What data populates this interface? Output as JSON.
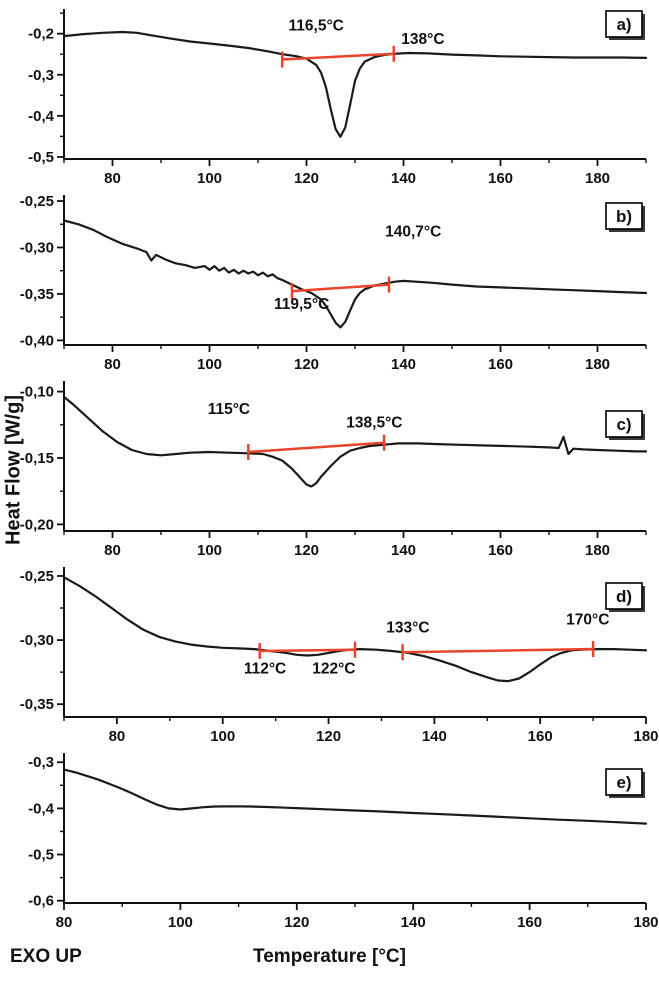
{
  "figure": {
    "y_axis_label": "Heat Flow [W/g]",
    "x_axis_label": "Temperature [°C]",
    "exo_label": "EXO UP",
    "curve_color": "#1a1a1a",
    "marker_color": "#e8432c",
    "background": "#ffffff"
  },
  "chart_data": [
    {
      "type": "line",
      "panel_label": "a)",
      "panel_label_offset": 2,
      "xlim": [
        70,
        190
      ],
      "ylim": [
        -0.505,
        -0.14
      ],
      "xticks": [
        80,
        100,
        120,
        140,
        160,
        180
      ],
      "x_minor_step": 10,
      "yticks": [
        -0.2,
        -0.3,
        -0.4,
        -0.5
      ],
      "ytick_labels": [
        "-0,2",
        "-0,3",
        "-0,4",
        "-0,5"
      ],
      "y_minor_step": 0.05,
      "curve": [
        [
          70,
          -0.206
        ],
        [
          74,
          -0.201
        ],
        [
          78,
          -0.198
        ],
        [
          82,
          -0.196
        ],
        [
          85,
          -0.198
        ],
        [
          88,
          -0.204
        ],
        [
          92,
          -0.212
        ],
        [
          96,
          -0.219
        ],
        [
          100,
          -0.224
        ],
        [
          104,
          -0.229
        ],
        [
          108,
          -0.235
        ],
        [
          112,
          -0.243
        ],
        [
          115,
          -0.25
        ],
        [
          118,
          -0.255
        ],
        [
          120,
          -0.261
        ],
        [
          122,
          -0.276
        ],
        [
          123,
          -0.295
        ],
        [
          124,
          -0.33
        ],
        [
          125,
          -0.384
        ],
        [
          126,
          -0.432
        ],
        [
          127,
          -0.451
        ],
        [
          128,
          -0.428
        ],
        [
          129,
          -0.373
        ],
        [
          130,
          -0.315
        ],
        [
          131,
          -0.285
        ],
        [
          132,
          -0.268
        ],
        [
          134,
          -0.257
        ],
        [
          136,
          -0.252
        ],
        [
          138,
          -0.249
        ],
        [
          141,
          -0.247
        ],
        [
          145,
          -0.248
        ],
        [
          150,
          -0.251
        ],
        [
          155,
          -0.253
        ],
        [
          160,
          -0.255
        ],
        [
          165,
          -0.256
        ],
        [
          170,
          -0.257
        ],
        [
          175,
          -0.258
        ],
        [
          180,
          -0.258
        ],
        [
          185,
          -0.258
        ],
        [
          190,
          -0.259
        ]
      ],
      "baselines": [
        {
          "x1": 115,
          "y1": -0.263,
          "x2": 138,
          "y2": -0.249
        }
      ],
      "annotations": [
        {
          "text": "116,5°C",
          "x": 122,
          "y": -0.192
        },
        {
          "text": "138°C",
          "x": 144,
          "y": -0.225
        }
      ]
    },
    {
      "type": "line",
      "panel_label": "b)",
      "panel_label_offset": 8,
      "xlim": [
        70,
        190
      ],
      "ylim": [
        -0.405,
        -0.2435
      ],
      "xticks": [
        80,
        100,
        120,
        140,
        160,
        180
      ],
      "x_minor_step": 10,
      "yticks": [
        -0.25,
        -0.3,
        -0.35,
        -0.4
      ],
      "ytick_labels": [
        "-0,25",
        "-0,30",
        "-0,35",
        "-0,40"
      ],
      "y_minor_step": 0.025,
      "curve": [
        [
          70,
          -0.271
        ],
        [
          73,
          -0.275
        ],
        [
          76,
          -0.281
        ],
        [
          79,
          -0.289
        ],
        [
          82,
          -0.296
        ],
        [
          85,
          -0.301
        ],
        [
          87,
          -0.305
        ],
        [
          88,
          -0.314
        ],
        [
          89,
          -0.308
        ],
        [
          91,
          -0.313
        ],
        [
          93,
          -0.317
        ],
        [
          95,
          -0.319
        ],
        [
          97,
          -0.322
        ],
        [
          99,
          -0.32
        ],
        [
          100,
          -0.324
        ],
        [
          101,
          -0.32
        ],
        [
          102,
          -0.325
        ],
        [
          103,
          -0.322
        ],
        [
          104,
          -0.327
        ],
        [
          105,
          -0.324
        ],
        [
          106,
          -0.328
        ],
        [
          107,
          -0.325
        ],
        [
          108,
          -0.328
        ],
        [
          109,
          -0.326
        ],
        [
          110,
          -0.33
        ],
        [
          111,
          -0.327
        ],
        [
          112,
          -0.331
        ],
        [
          113,
          -0.329
        ],
        [
          114,
          -0.333
        ],
        [
          115,
          -0.335
        ],
        [
          117,
          -0.34
        ],
        [
          119,
          -0.345
        ],
        [
          121,
          -0.349
        ],
        [
          123,
          -0.356
        ],
        [
          124,
          -0.363
        ],
        [
          125,
          -0.372
        ],
        [
          126,
          -0.381
        ],
        [
          127,
          -0.386
        ],
        [
          128,
          -0.38
        ],
        [
          129,
          -0.368
        ],
        [
          130,
          -0.356
        ],
        [
          131,
          -0.349
        ],
        [
          132,
          -0.345
        ],
        [
          134,
          -0.341
        ],
        [
          136,
          -0.339
        ],
        [
          138,
          -0.337
        ],
        [
          140,
          -0.336
        ],
        [
          143,
          -0.337
        ],
        [
          146,
          -0.338
        ],
        [
          150,
          -0.34
        ],
        [
          155,
          -0.342
        ],
        [
          160,
          -0.343
        ],
        [
          165,
          -0.344
        ],
        [
          170,
          -0.345
        ],
        [
          175,
          -0.346
        ],
        [
          180,
          -0.347
        ],
        [
          185,
          -0.348
        ],
        [
          190,
          -0.349
        ]
      ],
      "baselines": [
        {
          "x1": 117,
          "y1": -0.347,
          "x2": 137,
          "y2": -0.34
        }
      ],
      "annotations": [
        {
          "text": "140,7°C",
          "x": 142,
          "y": -0.288
        },
        {
          "text": "119,5°C",
          "x": 119,
          "y": -0.366
        }
      ]
    },
    {
      "type": "line",
      "panel_label": "c)",
      "panel_label_offset": 30,
      "xlim": [
        70,
        190
      ],
      "ylim": [
        -0.205,
        -0.092
      ],
      "xticks": [
        80,
        100,
        120,
        140,
        160,
        180
      ],
      "x_minor_step": 10,
      "yticks": [
        -0.1,
        -0.15,
        -0.2
      ],
      "ytick_labels": [
        "-0,10",
        "-0,15",
        "-0,20"
      ],
      "y_minor_step": 0.025,
      "curve": [
        [
          70,
          -0.104
        ],
        [
          72,
          -0.11
        ],
        [
          75,
          -0.12
        ],
        [
          78,
          -0.13
        ],
        [
          81,
          -0.138
        ],
        [
          84,
          -0.144
        ],
        [
          87,
          -0.147
        ],
        [
          90,
          -0.148
        ],
        [
          93,
          -0.147
        ],
        [
          96,
          -0.146
        ],
        [
          100,
          -0.1455
        ],
        [
          104,
          -0.146
        ],
        [
          108,
          -0.1465
        ],
        [
          111,
          -0.147
        ],
        [
          113,
          -0.149
        ],
        [
          115,
          -0.152
        ],
        [
          117,
          -0.158
        ],
        [
          119,
          -0.166
        ],
        [
          120,
          -0.17
        ],
        [
          121,
          -0.1715
        ],
        [
          122,
          -0.169
        ],
        [
          123,
          -0.164
        ],
        [
          125,
          -0.156
        ],
        [
          127,
          -0.149
        ],
        [
          129,
          -0.1445
        ],
        [
          131,
          -0.1425
        ],
        [
          133,
          -0.141
        ],
        [
          136,
          -0.14
        ],
        [
          139,
          -0.139
        ],
        [
          143,
          -0.139
        ],
        [
          147,
          -0.1395
        ],
        [
          151,
          -0.14
        ],
        [
          156,
          -0.1405
        ],
        [
          161,
          -0.141
        ],
        [
          166,
          -0.1415
        ],
        [
          170,
          -0.142
        ],
        [
          172,
          -0.1425
        ],
        [
          173,
          -0.134
        ],
        [
          174,
          -0.147
        ],
        [
          175,
          -0.143
        ],
        [
          177,
          -0.1435
        ],
        [
          180,
          -0.144
        ],
        [
          184,
          -0.1445
        ],
        [
          188,
          -0.145
        ],
        [
          190,
          -0.145
        ]
      ],
      "baselines": [
        {
          "x1": 108,
          "y1": -0.1455,
          "x2": 136,
          "y2": -0.1385
        }
      ],
      "annotations": [
        {
          "text": "115°C",
          "x": 104,
          "y": -0.117
        },
        {
          "text": "138,5°C",
          "x": 134,
          "y": -0.127
        }
      ]
    },
    {
      "type": "line",
      "panel_label": "d)",
      "panel_label_offset": 16,
      "xlim": [
        70,
        180
      ],
      "ylim": [
        -0.36,
        -0.243
      ],
      "xticks": [
        80,
        100,
        120,
        140,
        160,
        180
      ],
      "x_minor_step": 10,
      "yticks": [
        -0.25,
        -0.3,
        -0.35
      ],
      "ytick_labels": [
        "-0,25",
        "-0,30",
        "-0,35"
      ],
      "y_minor_step": 0.025,
      "curve": [
        [
          70,
          -0.251
        ],
        [
          73,
          -0.258
        ],
        [
          76,
          -0.266
        ],
        [
          79,
          -0.275
        ],
        [
          82,
          -0.284
        ],
        [
          85,
          -0.292
        ],
        [
          88,
          -0.2975
        ],
        [
          91,
          -0.301
        ],
        [
          94,
          -0.3035
        ],
        [
          97,
          -0.305
        ],
        [
          100,
          -0.306
        ],
        [
          103,
          -0.3065
        ],
        [
          106,
          -0.307
        ],
        [
          109,
          -0.3085
        ],
        [
          112,
          -0.31
        ],
        [
          114,
          -0.3115
        ],
        [
          116,
          -0.312
        ],
        [
          118,
          -0.3115
        ],
        [
          120,
          -0.31
        ],
        [
          122,
          -0.3085
        ],
        [
          124,
          -0.3075
        ],
        [
          126,
          -0.307
        ],
        [
          129,
          -0.3075
        ],
        [
          132,
          -0.3085
        ],
        [
          135,
          -0.31
        ],
        [
          138,
          -0.3125
        ],
        [
          141,
          -0.316
        ],
        [
          144,
          -0.32
        ],
        [
          147,
          -0.325
        ],
        [
          150,
          -0.329
        ],
        [
          152,
          -0.3315
        ],
        [
          154,
          -0.332
        ],
        [
          156,
          -0.33
        ],
        [
          158,
          -0.325
        ],
        [
          160,
          -0.319
        ],
        [
          162,
          -0.3135
        ],
        [
          164,
          -0.31
        ],
        [
          166,
          -0.308
        ],
        [
          168,
          -0.3075
        ],
        [
          171,
          -0.307
        ],
        [
          174,
          -0.307
        ],
        [
          177,
          -0.3075
        ],
        [
          180,
          -0.308
        ]
      ],
      "baselines": [
        {
          "x1": 107,
          "y1": -0.3085,
          "x2": 125,
          "y2": -0.3075
        },
        {
          "x1": 134,
          "y1": -0.3095,
          "x2": 170,
          "y2": -0.307
        }
      ],
      "annotations": [
        {
          "text": "112°C",
          "x": 108,
          "y": -0.326
        },
        {
          "text": "122°C",
          "x": 121,
          "y": -0.326
        },
        {
          "text": "133°C",
          "x": 135,
          "y": -0.294
        },
        {
          "text": "170°C",
          "x": 169,
          "y": -0.288
        }
      ]
    },
    {
      "type": "line",
      "panel_label": "e)",
      "panel_label_offset": 16,
      "xlim": [
        80,
        180
      ],
      "ylim": [
        -0.605,
        -0.28
      ],
      "xticks": [
        80,
        100,
        120,
        140,
        160,
        180
      ],
      "x_minor_step": 10,
      "yticks": [
        -0.3,
        -0.4,
        -0.5,
        -0.6
      ],
      "ytick_labels": [
        "-0,3",
        "-0,4",
        "-0,5",
        "-0,6"
      ],
      "y_minor_step": 0.05,
      "curve": [
        [
          80,
          -0.316
        ],
        [
          82,
          -0.322
        ],
        [
          84,
          -0.33
        ],
        [
          86,
          -0.338
        ],
        [
          88,
          -0.348
        ],
        [
          90,
          -0.358
        ],
        [
          92,
          -0.369
        ],
        [
          94,
          -0.381
        ],
        [
          96,
          -0.392
        ],
        [
          98,
          -0.4
        ],
        [
          100,
          -0.4025
        ],
        [
          102,
          -0.4
        ],
        [
          104,
          -0.3975
        ],
        [
          106,
          -0.396
        ],
        [
          109,
          -0.3955
        ],
        [
          112,
          -0.396
        ],
        [
          115,
          -0.397
        ],
        [
          118,
          -0.3985
        ],
        [
          121,
          -0.4
        ],
        [
          125,
          -0.402
        ],
        [
          130,
          -0.4045
        ],
        [
          135,
          -0.407
        ],
        [
          140,
          -0.41
        ],
        [
          145,
          -0.4125
        ],
        [
          150,
          -0.4155
        ],
        [
          155,
          -0.4185
        ],
        [
          160,
          -0.4215
        ],
        [
          165,
          -0.4245
        ],
        [
          170,
          -0.427
        ],
        [
          175,
          -0.43
        ],
        [
          180,
          -0.433
        ]
      ],
      "baselines": [],
      "annotations": []
    }
  ]
}
